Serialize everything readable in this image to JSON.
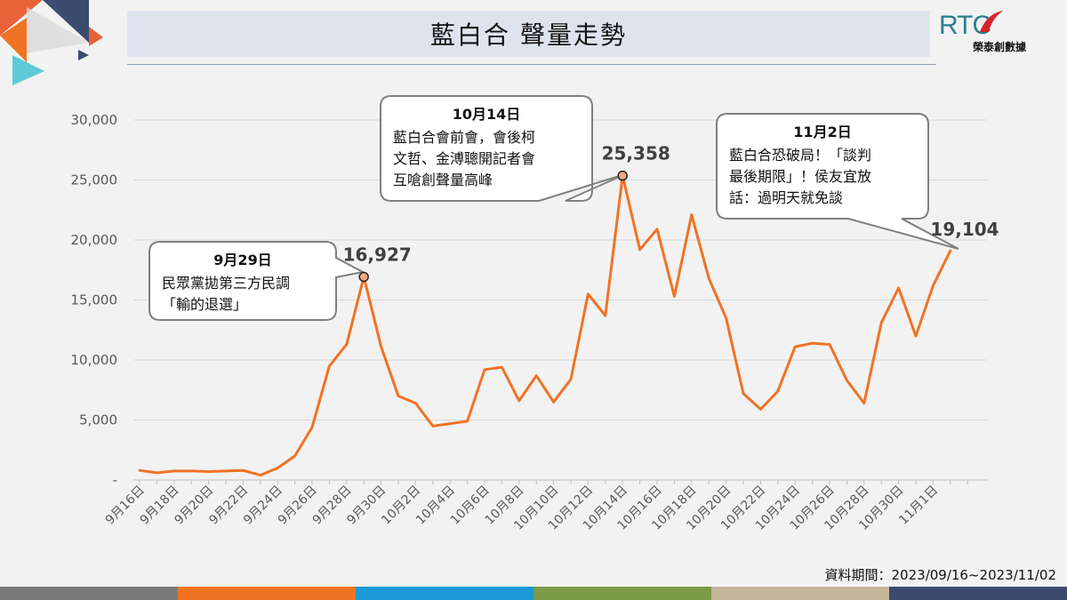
{
  "header": {
    "title": "藍白合  聲量走勢"
  },
  "logo": {
    "mark": "RTC",
    "name": "榮泰創數據"
  },
  "period": {
    "label": "資料期間：2023/09/16~2023/11/02"
  },
  "colors": {
    "line": "#f07324",
    "footer": [
      "#7a7a7a",
      "#f07324",
      "#1a9ad6",
      "#7d9a48",
      "#c4b49a",
      "#3b4c6e"
    ]
  },
  "chart_data": {
    "type": "line",
    "x": [
      "9月16日",
      "9月17日",
      "9月18日",
      "9月19日",
      "9月20日",
      "9月21日",
      "9月22日",
      "9月23日",
      "9月24日",
      "9月25日",
      "9月26日",
      "9月27日",
      "9月28日",
      "9月29日",
      "9月30日",
      "10月1日",
      "10月2日",
      "10月3日",
      "10月4日",
      "10月5日",
      "10月6日",
      "10月7日",
      "10月8日",
      "10月9日",
      "10月10日",
      "10月11日",
      "10月12日",
      "10月13日",
      "10月14日",
      "10月15日",
      "10月16日",
      "10月17日",
      "10月18日",
      "10月19日",
      "10月20日",
      "10月21日",
      "10月22日",
      "10月23日",
      "10月24日",
      "10月25日",
      "10月26日",
      "10月27日",
      "10月28日",
      "10月29日",
      "10月30日",
      "10月31日",
      "11月1日",
      "11月2日"
    ],
    "tick_labels": [
      "9月16日",
      "9月18日",
      "9月20日",
      "9月22日",
      "9月24日",
      "9月26日",
      "9月28日",
      "9月30日",
      "10月2日",
      "10月4日",
      "10月6日",
      "10月8日",
      "10月10日",
      "10月12日",
      "10月14日",
      "10月16日",
      "10月18日",
      "10月20日",
      "10月22日",
      "10月24日",
      "10月26日",
      "10月28日",
      "10月30日",
      "11月1日"
    ],
    "values": [
      800,
      600,
      750,
      750,
      700,
      750,
      800,
      400,
      1000,
      2000,
      4400,
      9500,
      11300,
      16927,
      11100,
      7000,
      6400,
      4500,
      4700,
      4900,
      9200,
      9400,
      6600,
      8700,
      6500,
      8400,
      15500,
      13700,
      25358,
      19200,
      20900,
      15300,
      22100,
      16800,
      13500,
      7200,
      5900,
      7400,
      11100,
      11400,
      11300,
      8300,
      6400,
      13100,
      16000,
      12000,
      16200,
      19104
    ],
    "ylim": [
      0,
      30000
    ],
    "yticks": [
      {
        "value": 0,
        "label": "-"
      },
      {
        "value": 5000,
        "label": "5,000"
      },
      {
        "value": 10000,
        "label": "10,000"
      },
      {
        "value": 15000,
        "label": "15,000"
      },
      {
        "value": 20000,
        "label": "20,000"
      },
      {
        "value": 25000,
        "label": "25,000"
      },
      {
        "value": 30000,
        "label": "30,000"
      }
    ],
    "grid": true,
    "annotations": [
      {
        "index": 13,
        "value_label": "16,927",
        "date": "9月29日",
        "lines": [
          "民眾黨拋第三方民調",
          "「輸的退選」"
        ],
        "marker": true
      },
      {
        "index": 28,
        "value_label": "25,358",
        "date": "10月14日",
        "lines": [
          "藍白合會前會，會後柯",
          "文哲、金溥聰開記者會",
          "互嗆創聲量高峰"
        ],
        "marker": true
      },
      {
        "index": 47,
        "value_label": "19,104",
        "date": "11月2日",
        "lines": [
          "藍白合恐破局！「談判",
          "最後期限」！侯友宜放",
          "話：過明天就免談"
        ],
        "marker": false
      }
    ]
  }
}
